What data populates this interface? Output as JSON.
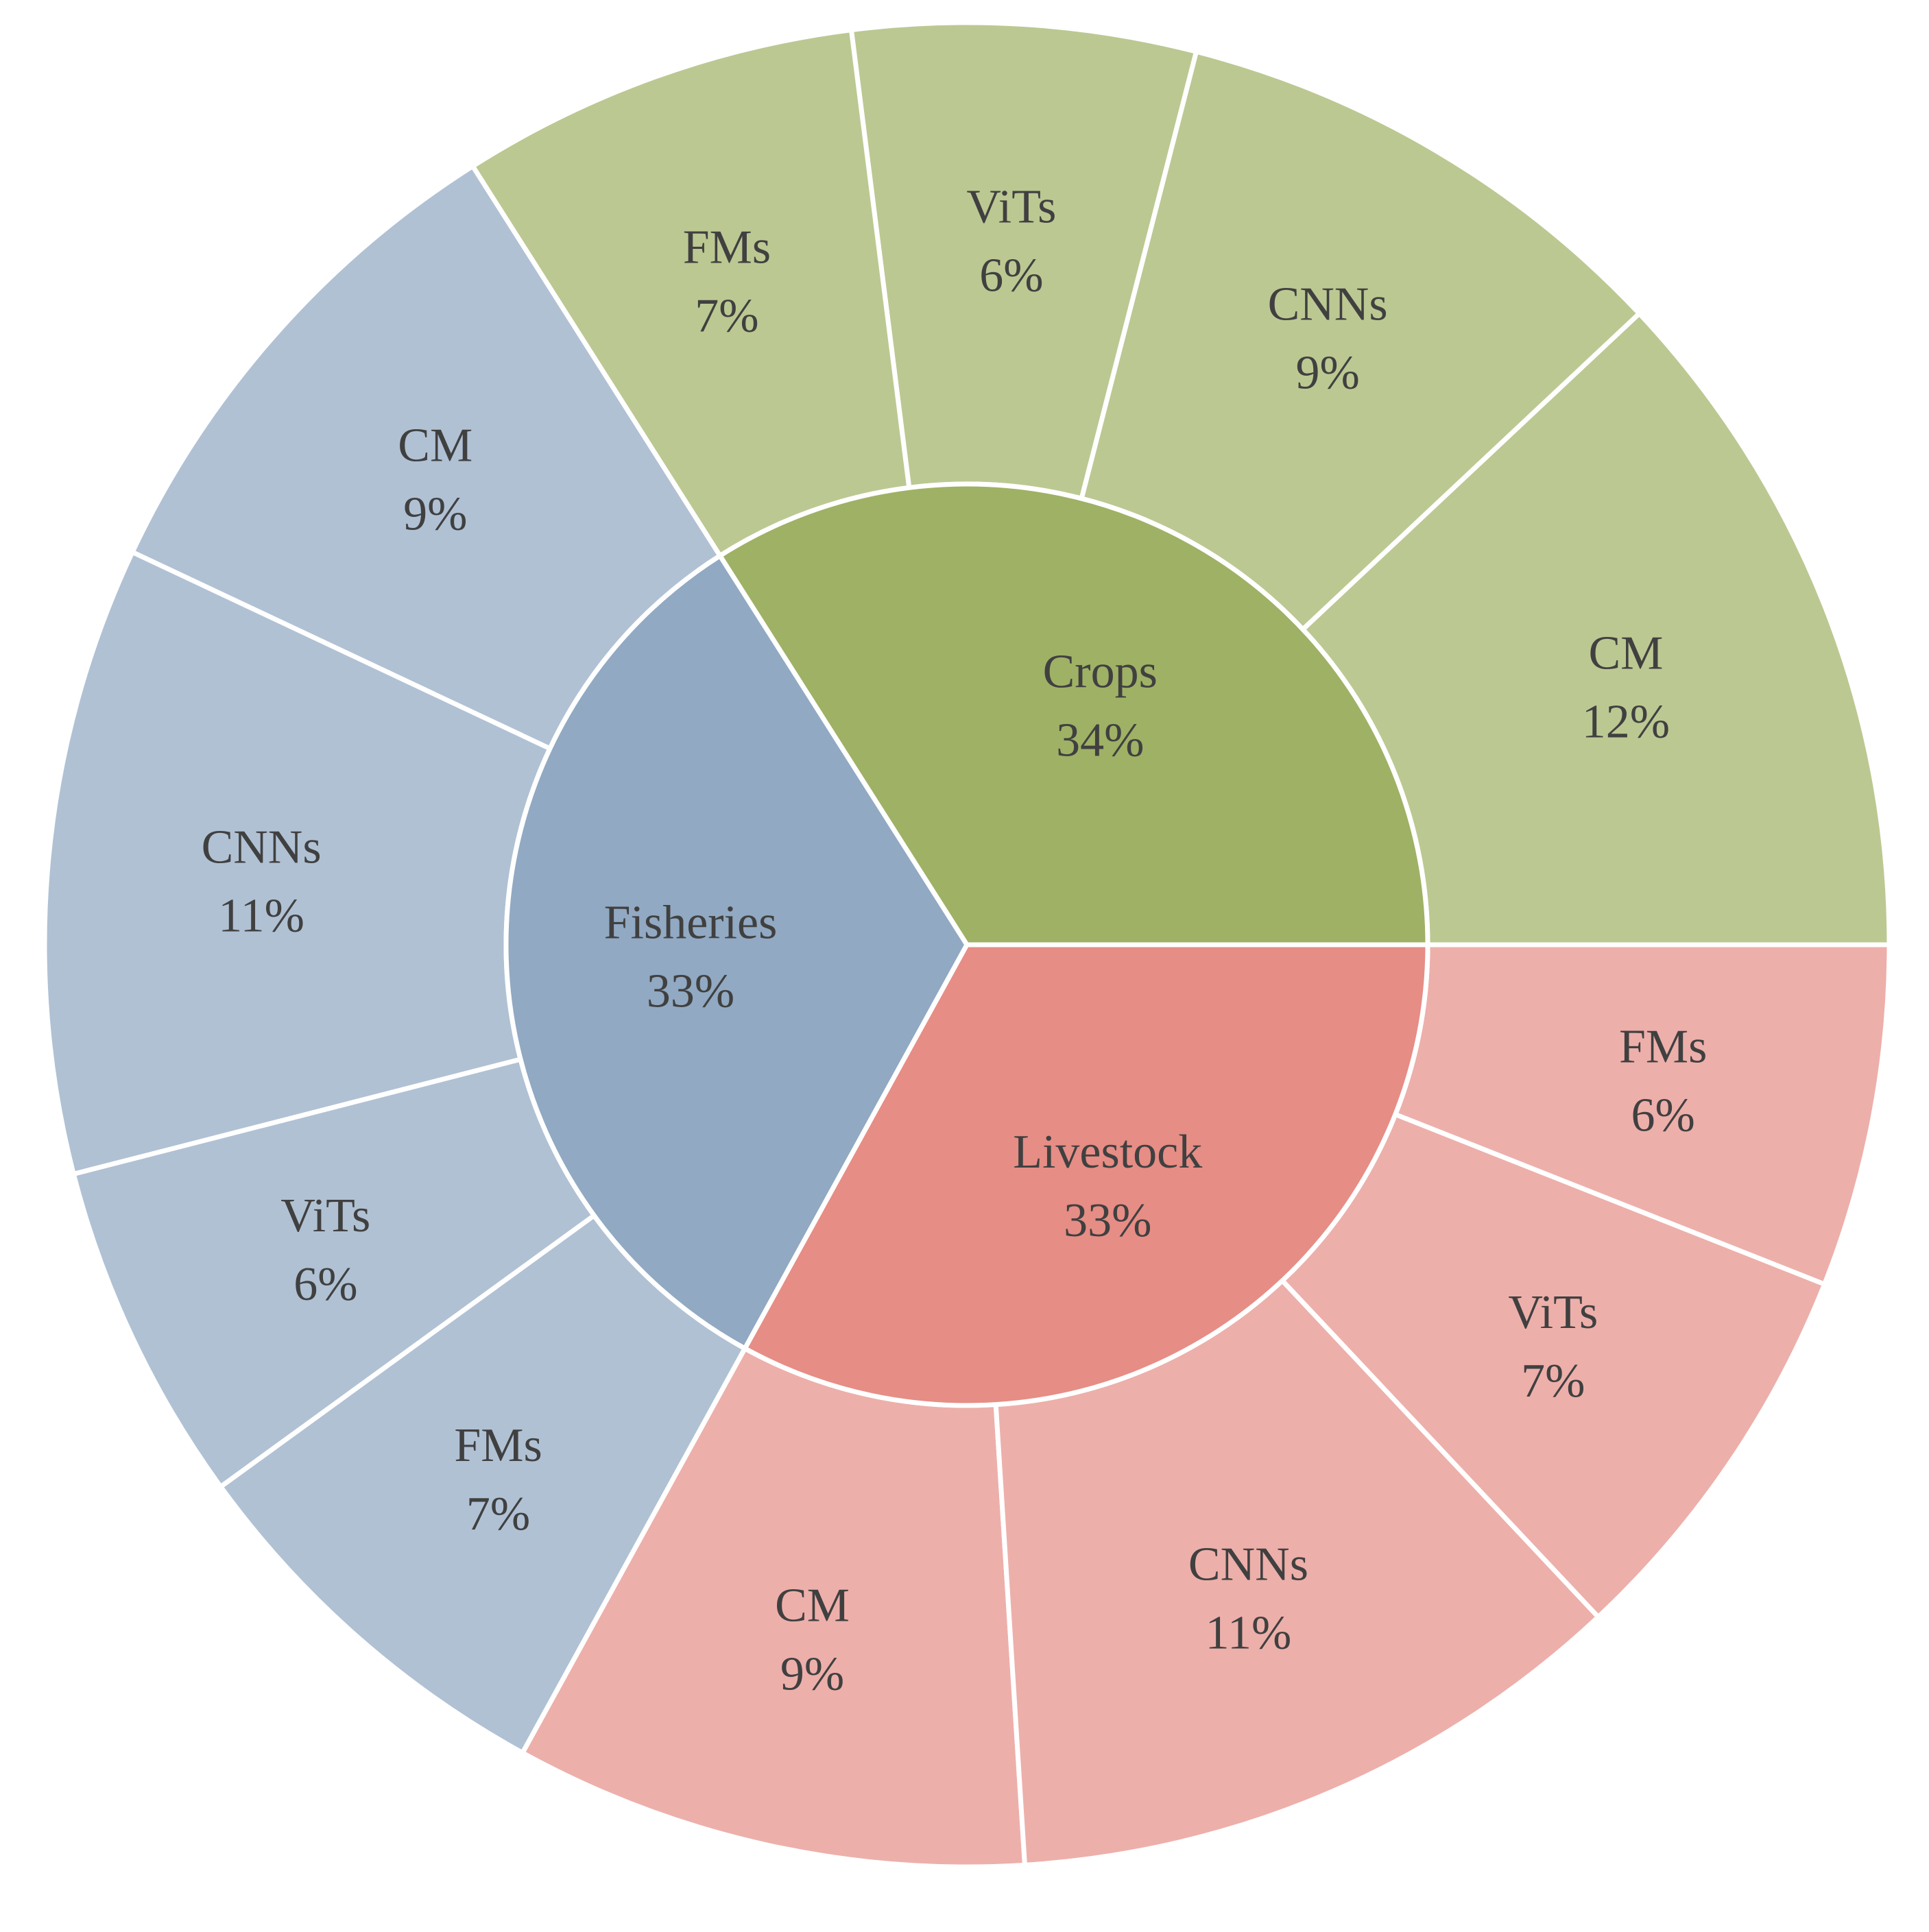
{
  "chart_data": {
    "type": "sunburst",
    "title": "",
    "groups": [
      {
        "name": "Crops",
        "percent_label": "34%",
        "value": 34,
        "color": "#9fb165",
        "child_color": "#bbc892",
        "children": [
          {
            "name": "CM",
            "percent_label": "12%",
            "value": 12
          },
          {
            "name": "CNNs",
            "percent_label": "9%",
            "value": 9
          },
          {
            "name": "ViTs",
            "percent_label": "6%",
            "value": 6
          },
          {
            "name": "FMs",
            "percent_label": "7%",
            "value": 7
          }
        ]
      },
      {
        "name": "Fisheries",
        "percent_label": "33%",
        "value": 33,
        "color": "#91a9c2",
        "child_color": "#b0c1d4",
        "children": [
          {
            "name": "CM",
            "percent_label": "9%",
            "value": 9
          },
          {
            "name": "CNNs",
            "percent_label": "11%",
            "value": 11
          },
          {
            "name": "ViTs",
            "percent_label": "6%",
            "value": 6
          },
          {
            "name": "FMs",
            "percent_label": "7%",
            "value": 7
          }
        ]
      },
      {
        "name": "Livestock",
        "percent_label": "33%",
        "value": 33,
        "color": "#e68d85",
        "child_color": "#edafaa",
        "children": [
          {
            "name": "CM",
            "percent_label": "9%",
            "value": 9
          },
          {
            "name": "CNNs",
            "percent_label": "11%",
            "value": 11
          },
          {
            "name": "ViTs",
            "percent_label": "7%",
            "value": 7
          },
          {
            "name": "FMs",
            "percent_label": "6%",
            "value": 6
          }
        ]
      }
    ],
    "separator_color": "#ffffff",
    "text_color": "#404040"
  }
}
